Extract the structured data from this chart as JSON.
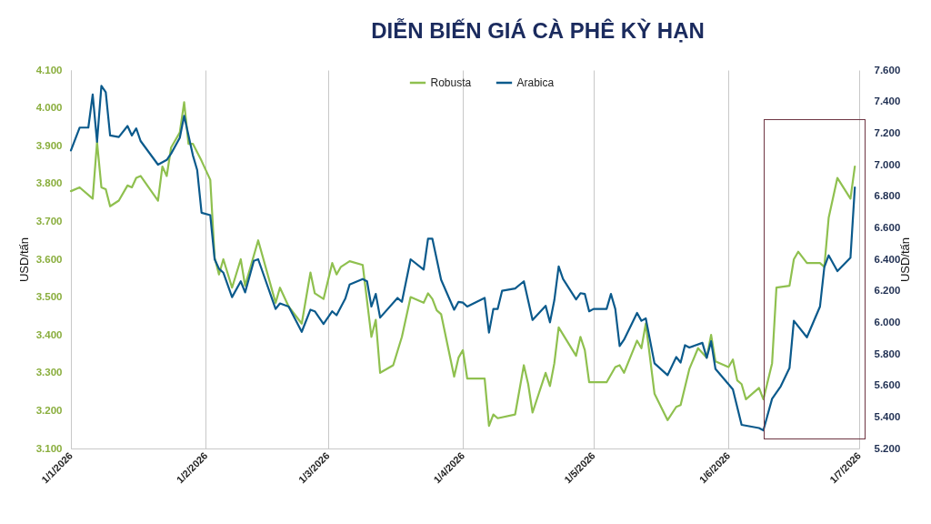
{
  "chart_data": {
    "type": "line",
    "title": "DIỄN BIẾN GIÁ CÀ PHÊ KỲ HẠN",
    "ylabel": "USD/tấn",
    "y2label": "USD/tấn",
    "xlim": [
      "2026-01-01",
      "2026-07-01"
    ],
    "xticks": [
      {
        "value": "2026-01-01",
        "label": "1/1/2026"
      },
      {
        "value": "2026-02-01",
        "label": "1/2/2026"
      },
      {
        "value": "2026-03-01",
        "label": "1/3/2026"
      },
      {
        "value": "2026-04-01",
        "label": "1/4/2026"
      },
      {
        "value": "2026-05-01",
        "label": "1/5/2026"
      },
      {
        "value": "2026-06-01",
        "label": "1/6/2026"
      },
      {
        "value": "2026-07-01",
        "label": "1/7/2026"
      }
    ],
    "ylim": [
      3100,
      4100
    ],
    "yticks": [
      {
        "value": 3100,
        "label": "3.100"
      },
      {
        "value": 3200,
        "label": "3.200"
      },
      {
        "value": 3300,
        "label": "3.300"
      },
      {
        "value": 3400,
        "label": "3.400"
      },
      {
        "value": 3500,
        "label": "3.500"
      },
      {
        "value": 3600,
        "label": "3.600"
      },
      {
        "value": 3700,
        "label": "3.700"
      },
      {
        "value": 3800,
        "label": "3.800"
      },
      {
        "value": 3900,
        "label": "3.900"
      },
      {
        "value": 4000,
        "label": "4.000"
      },
      {
        "value": 4100,
        "label": "4.100"
      }
    ],
    "y2lim": [
      5200,
      7600
    ],
    "y2ticks": [
      {
        "value": 5200,
        "label": "5.200"
      },
      {
        "value": 5400,
        "label": "5.400"
      },
      {
        "value": 5600,
        "label": "5.600"
      },
      {
        "value": 5800,
        "label": "5.800"
      },
      {
        "value": 6000,
        "label": "6.000"
      },
      {
        "value": 6200,
        "label": "6.200"
      },
      {
        "value": 6400,
        "label": "6.400"
      },
      {
        "value": 6600,
        "label": "6.600"
      },
      {
        "value": 6800,
        "label": "6.800"
      },
      {
        "value": 7000,
        "label": "7.000"
      },
      {
        "value": 7200,
        "label": "7.200"
      },
      {
        "value": 7400,
        "label": "7.400"
      },
      {
        "value": 7600,
        "label": "7.600"
      }
    ],
    "grid": "x",
    "legend": "top",
    "series": [
      {
        "name": "Robusta",
        "color": "#8fc04f",
        "x": [
          "2026-01-01",
          "2026-01-03",
          "2026-01-06",
          "2026-01-07",
          "2026-01-08",
          "2026-01-09",
          "2026-01-10",
          "2026-01-12",
          "2026-01-14",
          "2026-01-15",
          "2026-01-16",
          "2026-01-17",
          "2026-01-21",
          "2026-01-22",
          "2026-01-23",
          "2026-01-24",
          "2026-01-26",
          "2026-01-27",
          "2026-01-28",
          "2026-01-29",
          "2026-01-31",
          "2026-02-02",
          "2026-02-03",
          "2026-02-04",
          "2026-02-05",
          "2026-02-07",
          "2026-02-09",
          "2026-02-10",
          "2026-02-13",
          "2026-02-17",
          "2026-02-18",
          "2026-02-20",
          "2026-02-23",
          "2026-02-25",
          "2026-02-26",
          "2026-02-28",
          "2026-03-02",
          "2026-03-03",
          "2026-03-04",
          "2026-03-06",
          "2026-03-09",
          "2026-03-11",
          "2026-03-12",
          "2026-03-13",
          "2026-03-16",
          "2026-03-18",
          "2026-03-20",
          "2026-03-23",
          "2026-03-24",
          "2026-03-25",
          "2026-03-26",
          "2026-03-27",
          "2026-03-30",
          "2026-03-31",
          "2026-04-01",
          "2026-04-02",
          "2026-04-06",
          "2026-04-07",
          "2026-04-08",
          "2026-04-09",
          "2026-04-13",
          "2026-04-15",
          "2026-04-16",
          "2026-04-17",
          "2026-04-20",
          "2026-04-21",
          "2026-04-22",
          "2026-04-23",
          "2026-04-27",
          "2026-04-28",
          "2026-04-29",
          "2026-04-30",
          "2026-05-04",
          "2026-05-06",
          "2026-05-07",
          "2026-05-08",
          "2026-05-11",
          "2026-05-12",
          "2026-05-13",
          "2026-05-15",
          "2026-05-18",
          "2026-05-20",
          "2026-05-21",
          "2026-05-23",
          "2026-05-25",
          "2026-05-27",
          "2026-05-28",
          "2026-05-29",
          "2026-06-01",
          "2026-06-02",
          "2026-06-03",
          "2026-06-04",
          "2026-06-05",
          "2026-06-08",
          "2026-06-09",
          "2026-06-11",
          "2026-06-12",
          "2026-06-15",
          "2026-06-16",
          "2026-06-17",
          "2026-06-19",
          "2026-06-22",
          "2026-06-23",
          "2026-06-24",
          "2026-06-26",
          "2026-06-29",
          "2026-06-30"
        ],
        "values": [
          3780,
          3790,
          3760,
          3910,
          3790,
          3785,
          3740,
          3755,
          3795,
          3790,
          3815,
          3820,
          3755,
          3845,
          3820,
          3895,
          3935,
          4015,
          3905,
          3905,
          3860,
          3810,
          3605,
          3560,
          3600,
          3525,
          3600,
          3530,
          3650,
          3485,
          3525,
          3475,
          3430,
          3565,
          3510,
          3495,
          3590,
          3560,
          3580,
          3595,
          3585,
          3395,
          3440,
          3300,
          3320,
          3395,
          3500,
          3485,
          3510,
          3495,
          3465,
          3455,
          3290,
          3340,
          3360,
          3285,
          3285,
          3160,
          3190,
          3180,
          3190,
          3320,
          3270,
          3195,
          3300,
          3265,
          3325,
          3420,
          3345,
          3395,
          3360,
          3275,
          3275,
          3315,
          3320,
          3300,
          3385,
          3365,
          3430,
          3245,
          3175,
          3210,
          3215,
          3310,
          3365,
          3340,
          3400,
          3330,
          3315,
          3335,
          3280,
          3270,
          3230,
          3260,
          3230,
          3325,
          3525,
          3530,
          3600,
          3620,
          3590,
          3590,
          3580,
          3710,
          3815,
          3760,
          3845
        ]
      },
      {
        "name": "Arabica",
        "color": "#0b5a8c",
        "axis": "y2",
        "x": [
          "2026-01-01",
          "2026-01-03",
          "2026-01-05",
          "2026-01-06",
          "2026-01-07",
          "2026-01-08",
          "2026-01-09",
          "2026-01-10",
          "2026-01-12",
          "2026-01-14",
          "2026-01-15",
          "2026-01-16",
          "2026-01-17",
          "2026-01-21",
          "2026-01-23",
          "2026-01-24",
          "2026-01-26",
          "2026-01-27",
          "2026-01-29",
          "2026-01-30",
          "2026-01-31",
          "2026-02-02",
          "2026-02-03",
          "2026-02-04",
          "2026-02-05",
          "2026-02-07",
          "2026-02-09",
          "2026-02-10",
          "2026-02-12",
          "2026-02-13",
          "2026-02-17",
          "2026-02-18",
          "2026-02-20",
          "2026-02-23",
          "2026-02-25",
          "2026-02-26",
          "2026-02-28",
          "2026-03-02",
          "2026-03-03",
          "2026-03-05",
          "2026-03-06",
          "2026-03-09",
          "2026-03-10",
          "2026-03-11",
          "2026-03-12",
          "2026-03-13",
          "2026-03-17",
          "2026-03-18",
          "2026-03-20",
          "2026-03-23",
          "2026-03-24",
          "2026-03-25",
          "2026-03-27",
          "2026-03-30",
          "2026-03-31",
          "2026-04-01",
          "2026-04-02",
          "2026-04-06",
          "2026-04-07",
          "2026-04-08",
          "2026-04-09",
          "2026-04-10",
          "2026-04-13",
          "2026-04-15",
          "2026-04-17",
          "2026-04-20",
          "2026-04-21",
          "2026-04-22",
          "2026-04-23",
          "2026-04-24",
          "2026-04-27",
          "2026-04-28",
          "2026-04-29",
          "2026-04-30",
          "2026-05-01",
          "2026-05-04",
          "2026-05-05",
          "2026-05-06",
          "2026-05-07",
          "2026-05-08",
          "2026-05-11",
          "2026-05-12",
          "2026-05-13",
          "2026-05-15",
          "2026-05-18",
          "2026-05-20",
          "2026-05-21",
          "2026-05-22",
          "2026-05-23",
          "2026-05-26",
          "2026-05-27",
          "2026-05-28",
          "2026-05-29",
          "2026-06-02",
          "2026-06-04",
          "2026-06-08",
          "2026-06-09",
          "2026-06-11",
          "2026-06-13",
          "2026-06-15",
          "2026-06-16",
          "2026-06-19",
          "2026-06-22",
          "2026-06-23",
          "2026-06-24",
          "2026-06-26",
          "2026-06-29",
          "2026-06-30"
        ],
        "values": [
          7090,
          7235,
          7235,
          7445,
          7145,
          7500,
          7460,
          7185,
          7175,
          7245,
          7185,
          7230,
          7150,
          7000,
          7030,
          7070,
          7170,
          7310,
          7060,
          6965,
          6695,
          6680,
          6400,
          6340,
          6315,
          6160,
          6260,
          6190,
          6390,
          6400,
          6085,
          6120,
          6100,
          5940,
          6080,
          6070,
          5990,
          6070,
          6045,
          6150,
          6240,
          6275,
          6260,
          6100,
          6180,
          6030,
          6155,
          6130,
          6400,
          6335,
          6530,
          6530,
          6270,
          6080,
          6130,
          6125,
          6100,
          6155,
          5935,
          6085,
          6085,
          6200,
          6215,
          6260,
          6015,
          6105,
          6000,
          6140,
          6355,
          6275,
          6145,
          6185,
          6180,
          6070,
          6085,
          6085,
          6180,
          6085,
          5850,
          5890,
          6060,
          6010,
          6025,
          5740,
          5665,
          5780,
          5745,
          5855,
          5840,
          5870,
          5775,
          5880,
          5705,
          5575,
          5350,
          5330,
          5315,
          5515,
          5595,
          5710,
          6010,
          5905,
          6100,
          6350,
          6425,
          6325,
          6410,
          6855
        ]
      }
    ]
  }
}
